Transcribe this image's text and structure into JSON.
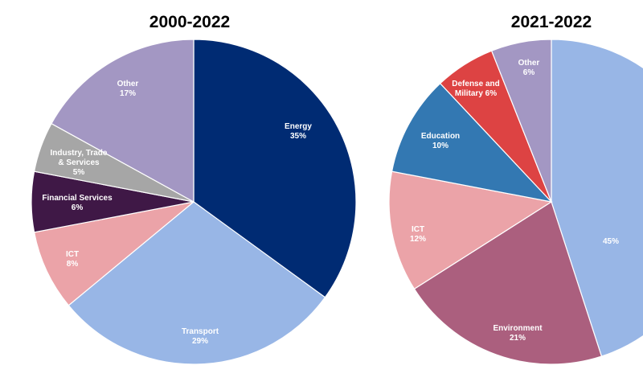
{
  "chart_data": [
    {
      "type": "pie",
      "title": "2000-2022",
      "slices": [
        {
          "label": [
            "Energy",
            "35%"
          ],
          "value": 35,
          "color": "#002b73",
          "text_color": "#ffffff"
        },
        {
          "label": [
            "Transport",
            "29%"
          ],
          "value": 29,
          "color": "#98b6e6",
          "text_color": "#ffffff"
        },
        {
          "label": [
            "ICT",
            "8%"
          ],
          "value": 8,
          "color": "#eba3a8",
          "text_color": "#ffffff"
        },
        {
          "label": [
            "Financial Services",
            "6%"
          ],
          "value": 6,
          "color": "#3f1846",
          "text_color": "#ffffff"
        },
        {
          "label": [
            "Industry, Trade",
            "& Services",
            "5%"
          ],
          "value": 5,
          "color": "#a6a6a6",
          "text_color": "#ffffff"
        },
        {
          "label": [
            "Other",
            "17%"
          ],
          "value": 17,
          "color": "#a397c3",
          "text_color": "#ffffff"
        }
      ]
    },
    {
      "type": "pie",
      "title": "2021-2022",
      "slices": [
        {
          "label": [
            "45%"
          ],
          "value": 45,
          "color": "#98b6e6",
          "text_color": "#ffffff"
        },
        {
          "label": [
            "Environment",
            "21%"
          ],
          "value": 21,
          "color": "#ab5f7e",
          "text_color": "#ffffff"
        },
        {
          "label": [
            "ICT",
            "12%"
          ],
          "value": 12,
          "color": "#eba3a8",
          "text_color": "#ffffff"
        },
        {
          "label": [
            "Education",
            "10%"
          ],
          "value": 10,
          "color": "#3378b2",
          "text_color": "#ffffff"
        },
        {
          "label": [
            "Defense and",
            "Military 6%"
          ],
          "value": 6,
          "color": "#dd4343",
          "text_color": "#ffffff"
        },
        {
          "label": [
            "Other",
            "6%"
          ],
          "value": 6,
          "color": "#a397c3",
          "text_color": "#ffffff"
        }
      ]
    }
  ]
}
